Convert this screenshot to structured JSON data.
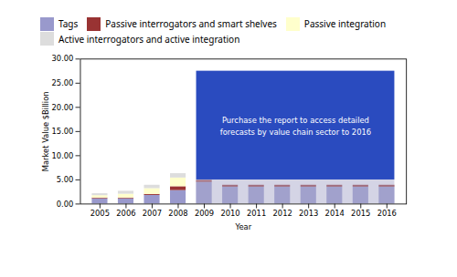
{
  "chart_data": {
    "type": "bar",
    "stacked": true,
    "x": [
      2005,
      2006,
      2007,
      2008,
      2009,
      2010,
      2011,
      2012,
      2013,
      2014,
      2015,
      2016
    ],
    "xlim": [
      2004.25,
      2016.75
    ],
    "xticks": [
      2005,
      2006,
      2007,
      2008,
      2009,
      2010,
      2011,
      2012,
      2013,
      2014,
      2015,
      2016
    ],
    "ylim": [
      0,
      30
    ],
    "yticks": [
      {
        "value": 0,
        "label": "0.00"
      },
      {
        "value": 5,
        "label": "5.00"
      },
      {
        "value": 10,
        "label": "10.00"
      },
      {
        "value": 15,
        "label": "15.00"
      },
      {
        "value": 20,
        "label": "20.00"
      },
      {
        "value": 25,
        "label": "25.00"
      },
      {
        "value": 30,
        "label": "30.00"
      }
    ],
    "xlabel": "Year",
    "ylabel": "Market Value $Billion",
    "legend": "top",
    "series": [
      {
        "name": "Tags",
        "color": "#9999cc",
        "values": [
          1.1,
          1.1,
          1.8,
          2.8,
          4.5,
          3.5,
          3.5,
          3.5,
          3.5,
          3.5,
          3.5,
          3.5
        ]
      },
      {
        "name": "Passive interrogators and smart shelves",
        "color": "#993333",
        "values": [
          0.15,
          0.15,
          0.2,
          0.8,
          0.4,
          0.4,
          0.4,
          0.4,
          0.4,
          0.4,
          0.4,
          0.4
        ]
      },
      {
        "name": "Passive integration",
        "color": "#ffffcc",
        "values": [
          0.5,
          0.8,
          1.2,
          1.8,
          0.0,
          0.0,
          0.0,
          0.0,
          0.0,
          0.0,
          0.0,
          0.0
        ]
      },
      {
        "name": "Active interrogators and active integration",
        "color": "#dddddd",
        "values": [
          0.4,
          0.6,
          0.7,
          0.9,
          0.0,
          0.0,
          0.0,
          0.0,
          0.0,
          0.0,
          0.0,
          0.0
        ]
      }
    ],
    "annotations": [
      {
        "text": "Purchase the report to access detailed\nforecasts by value chain sector to 2016",
        "x": [
          2009,
          2016
        ],
        "y": [
          5.0,
          27.5
        ]
      }
    ]
  }
}
